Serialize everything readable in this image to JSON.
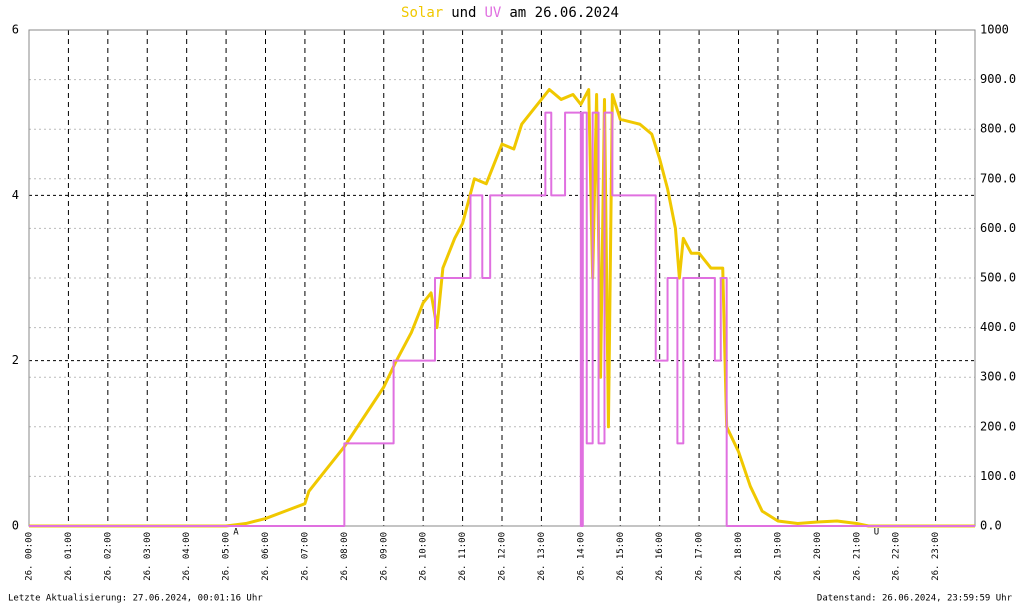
{
  "chart_data": {
    "type": "line",
    "title": {
      "parts": [
        "Solar",
        "und",
        "UV",
        "am 26.06.2024"
      ],
      "colors": [
        "#f0c800",
        "#000000",
        "#e070e0",
        "#000000"
      ]
    },
    "footer_left": "Letzte Aktualisierung: 27.06.2024, 00:01:16 Uhr",
    "footer_right": "Datenstand: 26.06.2024, 23:59:59 Uhr",
    "annotations": [
      {
        "text": "A",
        "x": 5.25
      },
      {
        "text": "U",
        "x": 21.5
      }
    ],
    "xlim": [
      0,
      24
    ],
    "xticks": [
      {
        "value": 0,
        "label": "26. 00:00"
      },
      {
        "value": 1,
        "label": "26. 01:00"
      },
      {
        "value": 2,
        "label": "26. 02:00"
      },
      {
        "value": 3,
        "label": "26. 03:00"
      },
      {
        "value": 4,
        "label": "26. 04:00"
      },
      {
        "value": 5,
        "label": "26. 05:00"
      },
      {
        "value": 6,
        "label": "26. 06:00"
      },
      {
        "value": 7,
        "label": "26. 07:00"
      },
      {
        "value": 8,
        "label": "26. 08:00"
      },
      {
        "value": 9,
        "label": "26. 09:00"
      },
      {
        "value": 10,
        "label": "26. 10:00"
      },
      {
        "value": 11,
        "label": "26. 11:00"
      },
      {
        "value": 12,
        "label": "26. 12:00"
      },
      {
        "value": 13,
        "label": "26. 13:00"
      },
      {
        "value": 14,
        "label": "26. 14:00"
      },
      {
        "value": 15,
        "label": "26. 15:00"
      },
      {
        "value": 16,
        "label": "26. 16:00"
      },
      {
        "value": 17,
        "label": "26. 17:00"
      },
      {
        "value": 18,
        "label": "26. 18:00"
      },
      {
        "value": 19,
        "label": "26. 19:00"
      },
      {
        "value": 20,
        "label": "26. 20:00"
      },
      {
        "value": 21,
        "label": "26. 21:00"
      },
      {
        "value": 22,
        "label": "26. 22:00"
      },
      {
        "value": 23,
        "label": "26. 23:00"
      }
    ],
    "ylim": [
      0,
      6
    ],
    "yticks": [
      0,
      2,
      4,
      6
    ],
    "y2lim": [
      0,
      1000
    ],
    "y2ticks": [
      {
        "value": 0,
        "label": "0.0"
      },
      {
        "value": 100,
        "label": "100.0"
      },
      {
        "value": 200,
        "label": "200.0"
      },
      {
        "value": 300,
        "label": "300.0"
      },
      {
        "value": 400,
        "label": "400.0"
      },
      {
        "value": 500,
        "label": "500.0"
      },
      {
        "value": 600,
        "label": "600.0"
      },
      {
        "value": 700,
        "label": "700.0"
      },
      {
        "value": 800,
        "label": "800.0"
      },
      {
        "value": 900,
        "label": "900.0"
      },
      1000
    ],
    "grid": true,
    "series": [
      {
        "name": "Solar",
        "color": "#f0c800",
        "axis": "y2",
        "x": [
          0,
          5,
          5.5,
          6,
          6.5,
          7,
          7.1,
          7.5,
          8,
          8.5,
          9,
          9.3,
          9.7,
          10,
          10.2,
          10.35,
          10.5,
          10.8,
          11,
          11.3,
          11.6,
          12,
          12.3,
          12.5,
          12.8,
          13,
          13.2,
          13.5,
          13.8,
          14,
          14.2,
          14.3,
          14.4,
          14.5,
          14.6,
          14.7,
          14.8,
          15,
          15.5,
          15.8,
          16,
          16.2,
          16.4,
          16.5,
          16.6,
          16.8,
          17,
          17.3,
          17.6,
          17.7,
          18,
          18.3,
          18.6,
          19,
          19.5,
          20,
          20.5,
          21,
          21.3,
          24
        ],
        "values": [
          0,
          0,
          5,
          15,
          30,
          45,
          70,
          110,
          160,
          220,
          280,
          330,
          390,
          450,
          470,
          400,
          520,
          580,
          610,
          700,
          690,
          770,
          760,
          810,
          840,
          860,
          880,
          860,
          870,
          850,
          880,
          500,
          870,
          300,
          860,
          200,
          870,
          820,
          810,
          790,
          740,
          680,
          600,
          500,
          580,
          550,
          550,
          520,
          520,
          200,
          150,
          80,
          30,
          10,
          5,
          8,
          10,
          5,
          0,
          0
        ]
      },
      {
        "name": "UV",
        "color": "#e070e0",
        "axis": "y",
        "x": [
          0,
          8,
          8,
          9.25,
          9.25,
          10.3,
          10.3,
          11.2,
          11.2,
          11.5,
          11.5,
          11.7,
          11.7,
          13.1,
          13.1,
          13.25,
          13.25,
          13.6,
          13.6,
          14.0,
          14.0,
          14.05,
          14.05,
          14.15,
          14.15,
          14.3,
          14.3,
          14.45,
          14.45,
          14.6,
          14.6,
          14.8,
          14.8,
          15.9,
          15.9,
          16.2,
          16.2,
          16.45,
          16.45,
          16.6,
          16.6,
          17.4,
          17.4,
          17.55,
          17.55,
          17.7,
          17.7,
          24
        ],
        "values": [
          0,
          0,
          1,
          1,
          2,
          2,
          3,
          3,
          4,
          4,
          3,
          3,
          4,
          4,
          5,
          5,
          4,
          4,
          5,
          5,
          0,
          0,
          5,
          5,
          1,
          1,
          5,
          5,
          1,
          1,
          5,
          5,
          4,
          4,
          2,
          2,
          3,
          3,
          1,
          1,
          3,
          3,
          2,
          2,
          3,
          3,
          0,
          0
        ]
      }
    ]
  }
}
